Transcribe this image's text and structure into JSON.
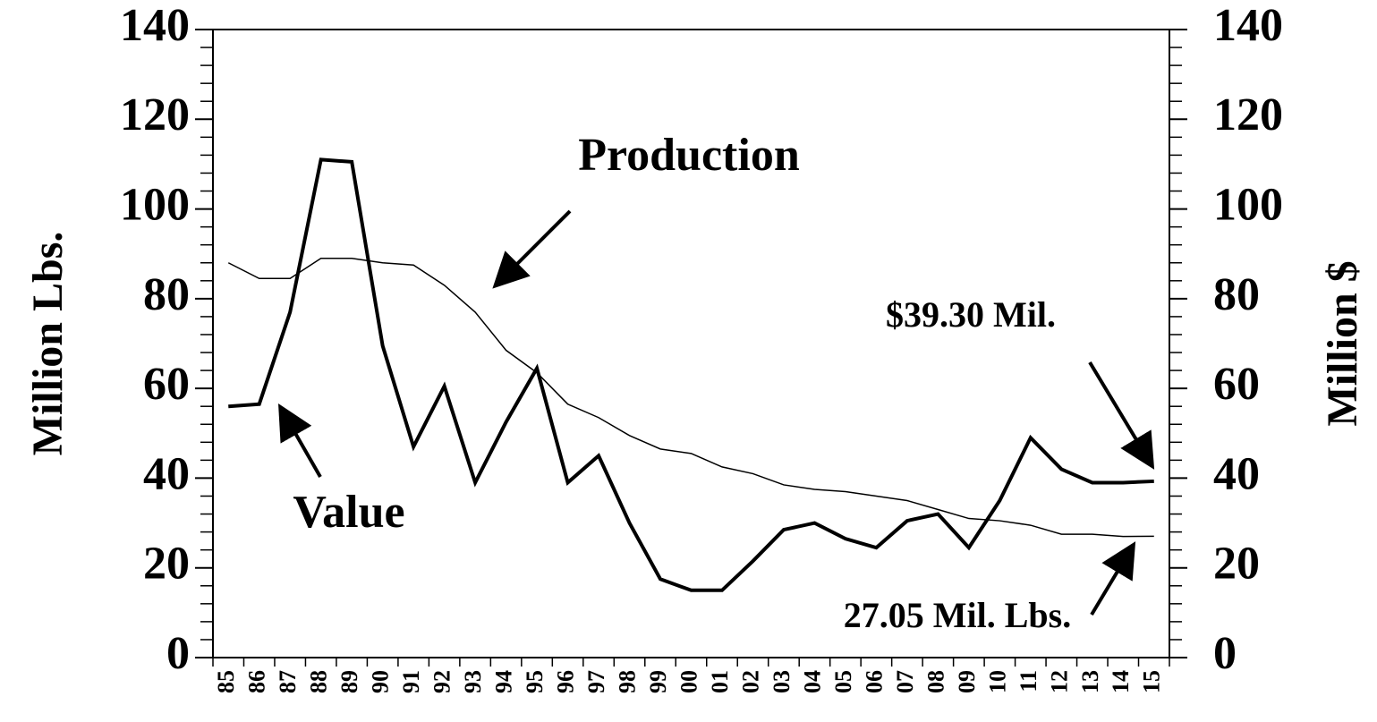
{
  "chart_data": {
    "type": "line",
    "x_label": "",
    "y_label": "Million Lbs.",
    "y2_label": "Million $",
    "categories": [
      "85",
      "86",
      "87",
      "88",
      "89",
      "90",
      "91",
      "92",
      "93",
      "94",
      "95",
      "96",
      "97",
      "98",
      "99",
      "00",
      "01",
      "02",
      "03",
      "04",
      "05",
      "06",
      "07",
      "08",
      "09",
      "10",
      "11",
      "12",
      "13",
      "14",
      "15"
    ],
    "series": [
      {
        "name": "Production",
        "color": "#000000",
        "width": 1.5,
        "values": [
          88,
          84.5,
          84.5,
          89,
          89,
          88,
          87.5,
          83,
          77,
          68.5,
          63.5,
          56.5,
          53.5,
          49.5,
          46.5,
          45.5,
          42.5,
          41,
          38.5,
          37.5,
          37,
          36,
          35,
          33,
          31,
          30.5,
          29.5,
          27.5,
          27.5,
          27,
          27.05
        ]
      },
      {
        "name": "Value",
        "color": "#000000",
        "width": 4,
        "axis": "y2",
        "values": [
          56,
          56.5,
          77,
          111,
          110.5,
          69.5,
          47,
          60.5,
          39,
          52.5,
          64.5,
          39,
          45,
          30,
          17.5,
          15,
          15,
          21.5,
          28.5,
          30,
          26.5,
          24.5,
          30.5,
          32,
          24.5,
          35,
          49,
          42,
          39,
          39,
          39.3
        ]
      }
    ],
    "annotations": [
      "$39.30 Mil.",
      "27.05 Mil. Lbs."
    ],
    "ylim": [
      0,
      140
    ],
    "yticks": [
      0,
      20,
      40,
      60,
      80,
      100,
      120,
      140
    ],
    "y2lim": [
      0,
      140
    ],
    "y2ticks": [
      0,
      20,
      40,
      60,
      80,
      100,
      120,
      140
    ]
  }
}
